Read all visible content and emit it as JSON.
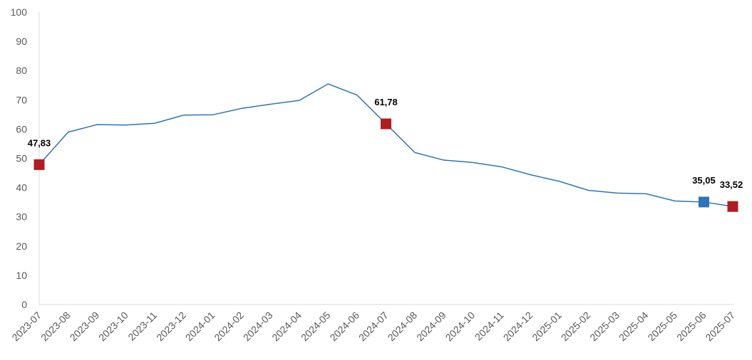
{
  "chart_data": {
    "type": "line",
    "categories": [
      "2023-07",
      "2023-08",
      "2023-09",
      "2023-10",
      "2023-11",
      "2023-12",
      "2024-01",
      "2024-02",
      "2024-03",
      "2024-04",
      "2024-05",
      "2024-06",
      "2024-07",
      "2024-08",
      "2024-09",
      "2024-10",
      "2024-11",
      "2024-12",
      "2025-01",
      "2025-02",
      "2025-03",
      "2025-04",
      "2025-05",
      "2025-06",
      "2025-07"
    ],
    "series": [
      {
        "values": [
          47.83,
          58.94,
          61.53,
          61.36,
          61.98,
          64.77,
          64.86,
          67.07,
          68.5,
          69.8,
          75.45,
          71.6,
          61.78,
          51.97,
          49.38,
          48.58,
          47.09,
          44.38,
          42.12,
          39.05,
          38.1,
          37.86,
          35.41,
          35.05,
          33.52
        ],
        "color": "#2e75b6"
      }
    ],
    "highlights": [
      {
        "index": 0,
        "label": "47,83",
        "color": "#b01c22"
      },
      {
        "index": 12,
        "label": "61,78",
        "color": "#b01c22"
      },
      {
        "index": 23,
        "label": "35,05",
        "color": "#2e75b6"
      },
      {
        "index": 24,
        "label": "33,52",
        "color": "#b01c22"
      }
    ],
    "y_ticks": [
      0,
      10,
      20,
      30,
      40,
      50,
      60,
      70,
      80,
      90,
      100
    ],
    "ylim": [
      0,
      100
    ],
    "title": "",
    "xlabel": "",
    "ylabel": "",
    "grid": false,
    "legend": "none"
  }
}
